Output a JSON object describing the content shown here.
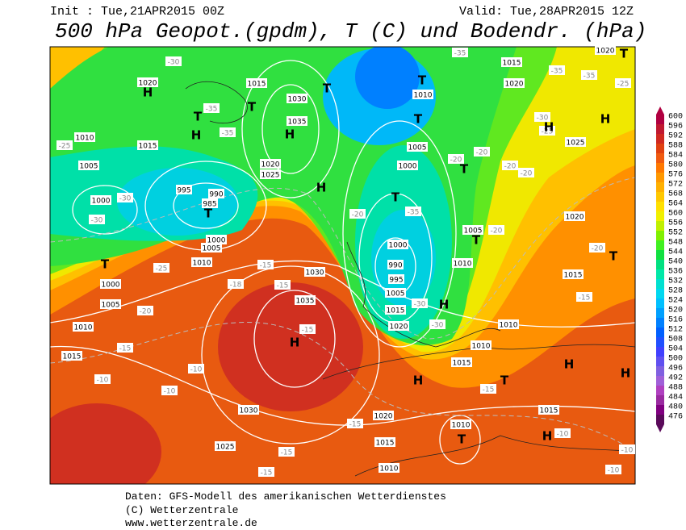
{
  "header": {
    "init": "Init : Tue,21APR2015 00Z",
    "valid": "Valid: Tue,28APR2015 12Z",
    "title": "500 hPa Geopot.(gpdm), T (C) und Bodendr. (hPa)"
  },
  "map": {
    "pressure_centers": [
      "H",
      "T",
      "H",
      "T",
      "H",
      "T",
      "T",
      "H",
      "T",
      "T",
      "T",
      "T",
      "T",
      "H",
      "H",
      "H",
      "T",
      "T",
      "H",
      "H",
      "H",
      "T",
      "H",
      "T",
      "H",
      "T"
    ],
    "isobar_labels": [
      "1020",
      "1015",
      "1010",
      "1005",
      "1000",
      "1015",
      "1030",
      "1035",
      "1020",
      "1025",
      "995",
      "990",
      "985",
      "1000",
      "1005",
      "1010",
      "1000",
      "1005",
      "1010",
      "1015",
      "1030",
      "1035",
      "1030",
      "1025",
      "1020",
      "1015",
      "1010",
      "1010",
      "1015",
      "1010",
      "1010",
      "1015",
      "1015",
      "1020",
      "1025",
      "1005",
      "1010",
      "1000",
      "1005",
      "1010",
      "1015",
      "1020",
      "1020",
      "990",
      "995",
      "1000",
      "1005",
      "1015",
      "1020"
    ],
    "temperature_labels": [
      "-30",
      "-30",
      "-30",
      "-25",
      "-25",
      "-20",
      "-15",
      "-10",
      "-10",
      "-15",
      "-15",
      "-15",
      "-10",
      "-15",
      "-15",
      "-15",
      "-18",
      "-20",
      "-35",
      "-30",
      "-30",
      "-20",
      "-20",
      "-20",
      "-20",
      "-20",
      "-20",
      "-25",
      "-30",
      "-35",
      "-35",
      "-35",
      "-25",
      "-15",
      "-15",
      "-10",
      "-10",
      "-10",
      "-35",
      "-35"
    ]
  },
  "colorbar": {
    "levels": [
      600,
      596,
      592,
      588,
      584,
      580,
      576,
      572,
      568,
      564,
      560,
      556,
      552,
      548,
      544,
      540,
      536,
      532,
      528,
      524,
      520,
      516,
      512,
      508,
      504,
      500,
      496,
      492,
      488,
      484,
      480,
      476
    ],
    "colors": [
      "#b00040",
      "#c01830",
      "#d02820",
      "#e04010",
      "#f05a10",
      "#ff7800",
      "#ff9800",
      "#ffb000",
      "#ffc800",
      "#ffe000",
      "#f0f000",
      "#c0f000",
      "#80f000",
      "#40f020",
      "#10e040",
      "#00e080",
      "#00e8a8",
      "#00e0d0",
      "#00d8f0",
      "#00c0ff",
      "#00a0ff",
      "#0080ff",
      "#0060ff",
      "#2050ff",
      "#4040ff",
      "#6050f0",
      "#8060e0",
      "#a060d8",
      "#b040c0",
      "#9a2aa0",
      "#800080",
      "#5a0a5a"
    ]
  },
  "footer": {
    "source": "Daten: GFS-Modell des amerikanischen Wetterdienstes",
    "copyright": "(C) Wetterzentrale",
    "url": "www.wetterzentrale.de"
  }
}
